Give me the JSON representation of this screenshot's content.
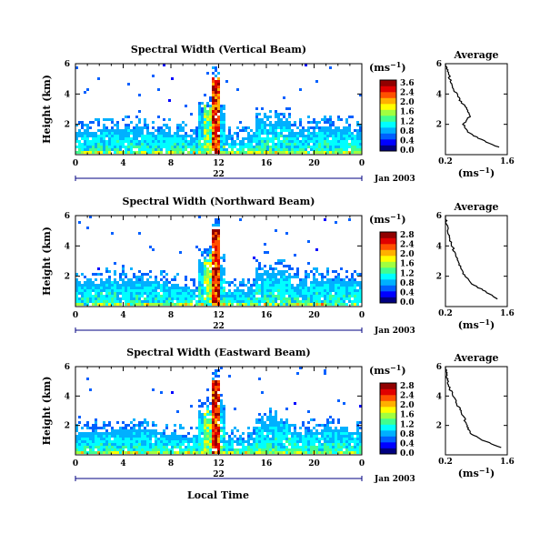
{
  "colorbar_unit": "(ms",
  "colorbar_unit_exp": "−1",
  "colorbar_ticks": [
    "3.6",
    "2.4",
    "2.0",
    "1.6",
    "1.2",
    "0.8",
    "0.4",
    "0.0"
  ],
  "colors": [
    "#000080",
    "#0000ff",
    "#0060ff",
    "#00b0ff",
    "#00ffff",
    "#40ff90",
    "#a0ff40",
    "#ffff00",
    "#ffb000",
    "#ff5000",
    "#e00000",
    "#900000"
  ],
  "x_ticks": [
    "0",
    "4",
    "8",
    "12",
    "16",
    "20",
    "0"
  ],
  "y_ticks": [
    "6",
    "4",
    "2"
  ],
  "avg_y_ticks": [
    "6",
    "4",
    "2"
  ],
  "avg_x_ticks": [
    "0.2",
    "1.6"
  ],
  "avg_title": "Average",
  "avg_xlabel": "(ms",
  "avg_xlabel_exp": "−1",
  "avg_xlabel_close": ")",
  "ylabel": "Height (km)",
  "date_marker": "22",
  "date_label": "Jan 2003",
  "xlabel_bottom": "Local Time",
  "chart_data": [
    {
      "type": "heatmap",
      "title": "Spectral Width (Vertical Beam)",
      "x_range": [
        0,
        24
      ],
      "y_range": [
        0,
        6
      ],
      "color_range": [
        0.0,
        3.6
      ],
      "ylabel": "Height (km)",
      "average_profile": {
        "height": [
          0.5,
          1.0,
          1.5,
          2.0,
          2.5,
          3.0,
          3.5,
          4.0,
          4.5,
          5.0,
          5.5,
          6.0
        ],
        "width": [
          1.4,
          1.0,
          0.7,
          0.6,
          0.75,
          0.7,
          0.55,
          0.45,
          0.35,
          0.3,
          0.25,
          0.2
        ]
      }
    },
    {
      "type": "heatmap",
      "title": "Spectral Width (Northward Beam)",
      "x_range": [
        0,
        24
      ],
      "y_range": [
        0,
        6
      ],
      "color_range": [
        0.0,
        2.8
      ],
      "ylabel": "Height (km)",
      "average_profile": {
        "height": [
          0.5,
          1.0,
          1.5,
          2.0,
          2.5,
          3.0,
          3.5,
          4.0,
          4.5,
          5.0,
          5.5,
          6.0
        ],
        "width": [
          1.4,
          1.1,
          0.8,
          0.65,
          0.55,
          0.5,
          0.42,
          0.35,
          0.28,
          0.25,
          0.22,
          0.2
        ]
      }
    },
    {
      "type": "heatmap",
      "title": "Spectral Width (Eastward Beam)",
      "x_range": [
        0,
        24
      ],
      "y_range": [
        0,
        6
      ],
      "color_range": [
        0.0,
        2.8
      ],
      "ylabel": "Height (km)",
      "xlabel": "Local Time",
      "average_profile": {
        "height": [
          0.5,
          1.0,
          1.5,
          2.0,
          2.5,
          3.0,
          3.5,
          4.0,
          4.5,
          5.0,
          5.5,
          6.0
        ],
        "width": [
          1.45,
          1.05,
          0.75,
          0.7,
          0.62,
          0.55,
          0.45,
          0.38,
          0.3,
          0.26,
          0.22,
          0.2
        ]
      }
    }
  ],
  "panel_cbar_ticks": [
    [
      "3.6",
      "2.4",
      "2.0",
      "1.6",
      "1.2",
      "0.8",
      "0.4",
      "0.0"
    ],
    [
      "2.8",
      "2.4",
      "2.0",
      "1.6",
      "1.2",
      "0.8",
      "0.4",
      "0.0"
    ],
    [
      "2.8",
      "2.4",
      "2.0",
      "1.6",
      "1.2",
      "0.8",
      "0.4",
      "0.0"
    ]
  ]
}
